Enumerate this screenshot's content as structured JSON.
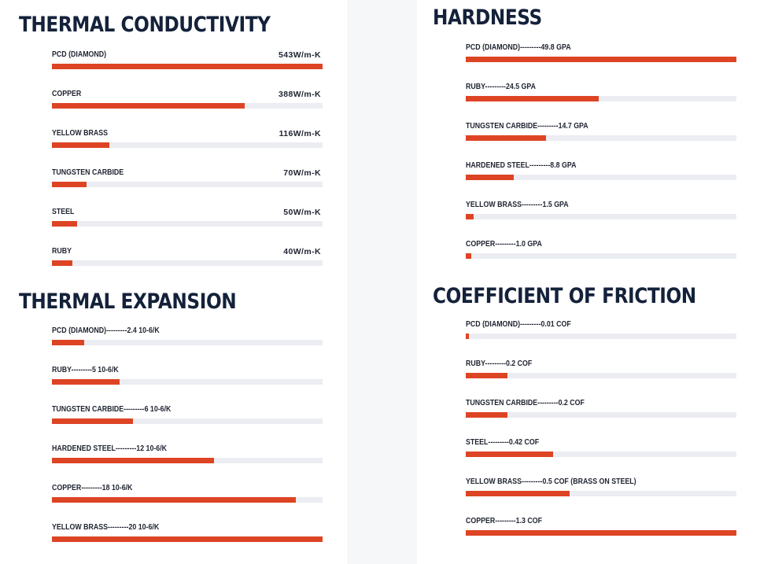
{
  "chart_data": [
    {
      "type": "bar",
      "title": "THERMAL CONDUCTIVITY",
      "unit": "W/m-K",
      "categories": [
        "PCD (DIAMOND)",
        "COPPER",
        "YELLOW BRASS",
        "TUNGSTEN CARBIDE",
        "STEEL",
        "RUBY"
      ],
      "values": [
        543,
        388,
        116,
        70,
        50,
        40
      ],
      "value_labels": [
        "543W/m-K",
        "388W/m-K",
        "116W/m-K",
        "70W/m-K",
        "50W/m-K",
        "40W/m-K"
      ],
      "label_text": [
        "PCD (DIAMOND)",
        "COPPER",
        "YELLOW BRASS",
        "TUNGSTEN CARBIDE",
        "STEEL",
        "RUBY"
      ],
      "fill_fraction": [
        1.0,
        0.712,
        0.213,
        0.128,
        0.093,
        0.075
      ],
      "orientation": "horizontal"
    },
    {
      "type": "bar",
      "title": "THERMAL EXPANSION",
      "unit": "10-6/K",
      "categories": [
        "PCD (DIAMOND)",
        "RUBY",
        "TUNGSTEN CARBIDE",
        "HARDENED STEEL",
        "COPPER",
        "YELLOW BRASS"
      ],
      "values": [
        2.4,
        5,
        6,
        12,
        18,
        20
      ],
      "label_text": [
        "PCD (DIAMOND)---------2.4 10-6/K",
        "RUBY---------5 10-6/K",
        "TUNGSTEN CARBIDE---------6 10-6/K",
        "HARDENED STEEL---------12 10-6/K",
        "COPPER---------18 10-6/K",
        "YELLOW BRASS---------20 10-6/K"
      ],
      "value_labels": [
        "",
        "",
        "",
        "",
        "",
        ""
      ],
      "fill_fraction": [
        0.12,
        0.25,
        0.3,
        0.6,
        0.9,
        1.0
      ],
      "orientation": "horizontal"
    },
    {
      "type": "bar",
      "title": "HARDNESS",
      "unit": "GPA",
      "categories": [
        "PCD (DIAMOND)",
        "RUBY",
        "TUNGSTEN CARBIDE",
        "HARDENED STEEL",
        "YELLOW BRASS",
        "COPPER"
      ],
      "values": [
        49.8,
        24.5,
        14.7,
        8.8,
        1.5,
        1.0
      ],
      "label_text": [
        "PCD (DIAMOND)---------49.8 GPA",
        "RUBY---------24.5 GPA",
        "TUNGSTEN CARBIDE---------14.7 GPA",
        "HARDENED STEEL---------8.8 GPA",
        "YELLOW BRASS---------1.5 GPA",
        "COPPER---------1.0 GPA"
      ],
      "value_labels": [
        "",
        "",
        "",
        "",
        "",
        ""
      ],
      "fill_fraction": [
        1.0,
        0.49,
        0.295,
        0.177,
        0.03,
        0.02
      ],
      "orientation": "horizontal"
    },
    {
      "type": "bar",
      "title": "COEFFICIENT OF FRICTION",
      "unit": "COF",
      "categories": [
        "PCD (DIAMOND)",
        "RUBY",
        "TUNGSTEN CARBIDE",
        "STEEL",
        "YELLOW BRASS",
        "COPPER"
      ],
      "values": [
        0.01,
        0.2,
        0.2,
        0.42,
        0.5,
        1.3
      ],
      "label_text": [
        "PCD (DIAMOND)---------0.01 COF",
        "RUBY---------0.2 COF",
        "TUNGSTEN CARBIDE---------0.2 COF",
        "STEEL---------0.42 COF",
        "YELLOW BRASS---------0.5 COF (BRASS ON STEEL)",
        "COPPER---------1.3 COF"
      ],
      "value_labels": [
        "",
        "",
        "",
        "",
        "",
        ""
      ],
      "fill_fraction": [
        0.008,
        0.154,
        0.154,
        0.323,
        0.385,
        1.0
      ],
      "orientation": "horizontal"
    }
  ],
  "colors": {
    "bar_fill": "#dd4424",
    "bar_track": "#ebedf2",
    "title": "#14213a",
    "label": "#1f2430",
    "panel": "#ffffff",
    "page_background": "#f6f7f9"
  }
}
